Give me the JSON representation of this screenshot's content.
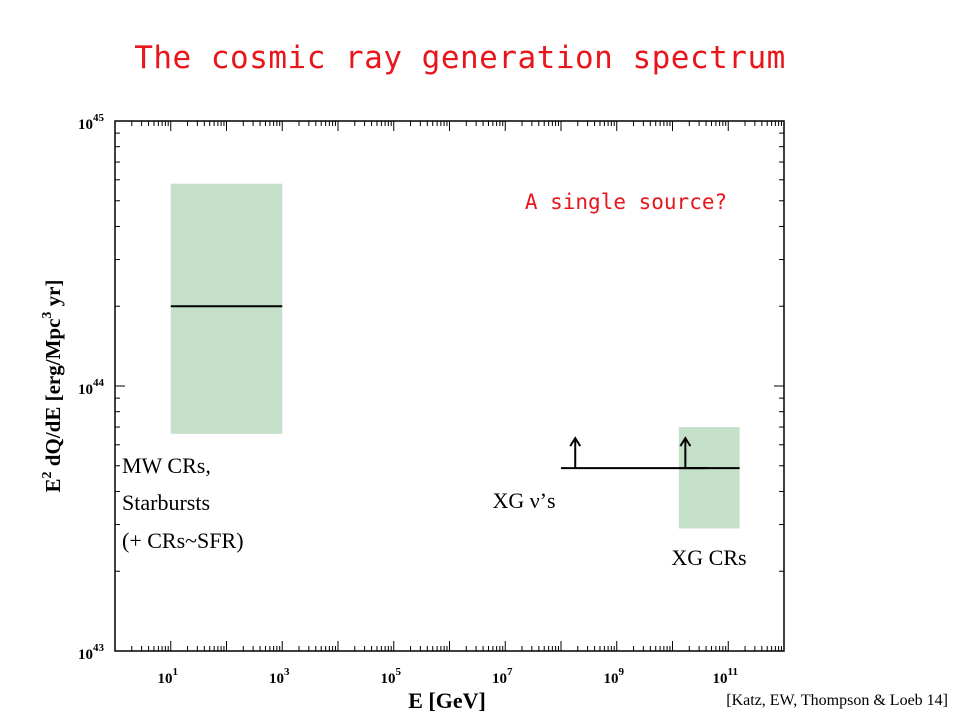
{
  "title": "The cosmic ray generation spectrum",
  "question": "A single source?",
  "citation": "[Katz, EW, Thompson & Loeb 14]",
  "colors": {
    "title": "#e8161b",
    "question": "#e8161b",
    "band_fill": "#c5e0c9",
    "line": "#000000"
  },
  "chart_data": {
    "type": "range",
    "xlabel": "E [GeV]",
    "ylabel": {
      "pre": "E",
      "sup1": "2",
      "mid": " dQ/dE  [erg/Mpc",
      "sup2": "3",
      "post": " yr]"
    },
    "x_scale": "log",
    "y_scale": "log",
    "xlim": [
      1,
      1000000000000.0
    ],
    "ylim": [
      1e+43,
      1e+45
    ],
    "x_ticks": [
      {
        "value": 10,
        "base": "10",
        "exp": "1"
      },
      {
        "value": 1000,
        "base": "10",
        "exp": "3"
      },
      {
        "value": 100000,
        "base": "10",
        "exp": "5"
      },
      {
        "value": 10000000,
        "base": "10",
        "exp": "7"
      },
      {
        "value": 1000000000,
        "base": "10",
        "exp": "9"
      },
      {
        "value": 100000000000,
        "base": "10",
        "exp": "11"
      }
    ],
    "y_ticks": [
      {
        "value": 1e+43,
        "base": "10",
        "exp": "43"
      },
      {
        "value": 1e+44,
        "base": "10",
        "exp": "44"
      },
      {
        "value": 1e+45,
        "base": "10",
        "exp": "45"
      }
    ],
    "grid": false,
    "bands": [
      {
        "x": [
          10,
          1000
        ],
        "y_low": 6.6e+43,
        "y_high": 5.8e+44,
        "central": 2e+44
      },
      {
        "x": [
          13000000000.0,
          160000000000.0
        ],
        "y_low": 2.9e+43,
        "y_high": 7e+43,
        "central": 4.9e+43
      }
    ],
    "lower_limit": {
      "x": [
        100000000.0,
        43000000000.0
      ],
      "y": 4.9e+43,
      "arrows_at_x": [
        180000000.0,
        17000000000.0
      ]
    },
    "annotations": {
      "mw": [
        "MW CRs,",
        "Starbursts",
        "(+ CRs~SFR)"
      ],
      "xg_nu": "XG ν’s",
      "xg_cr": "XG CRs"
    }
  }
}
